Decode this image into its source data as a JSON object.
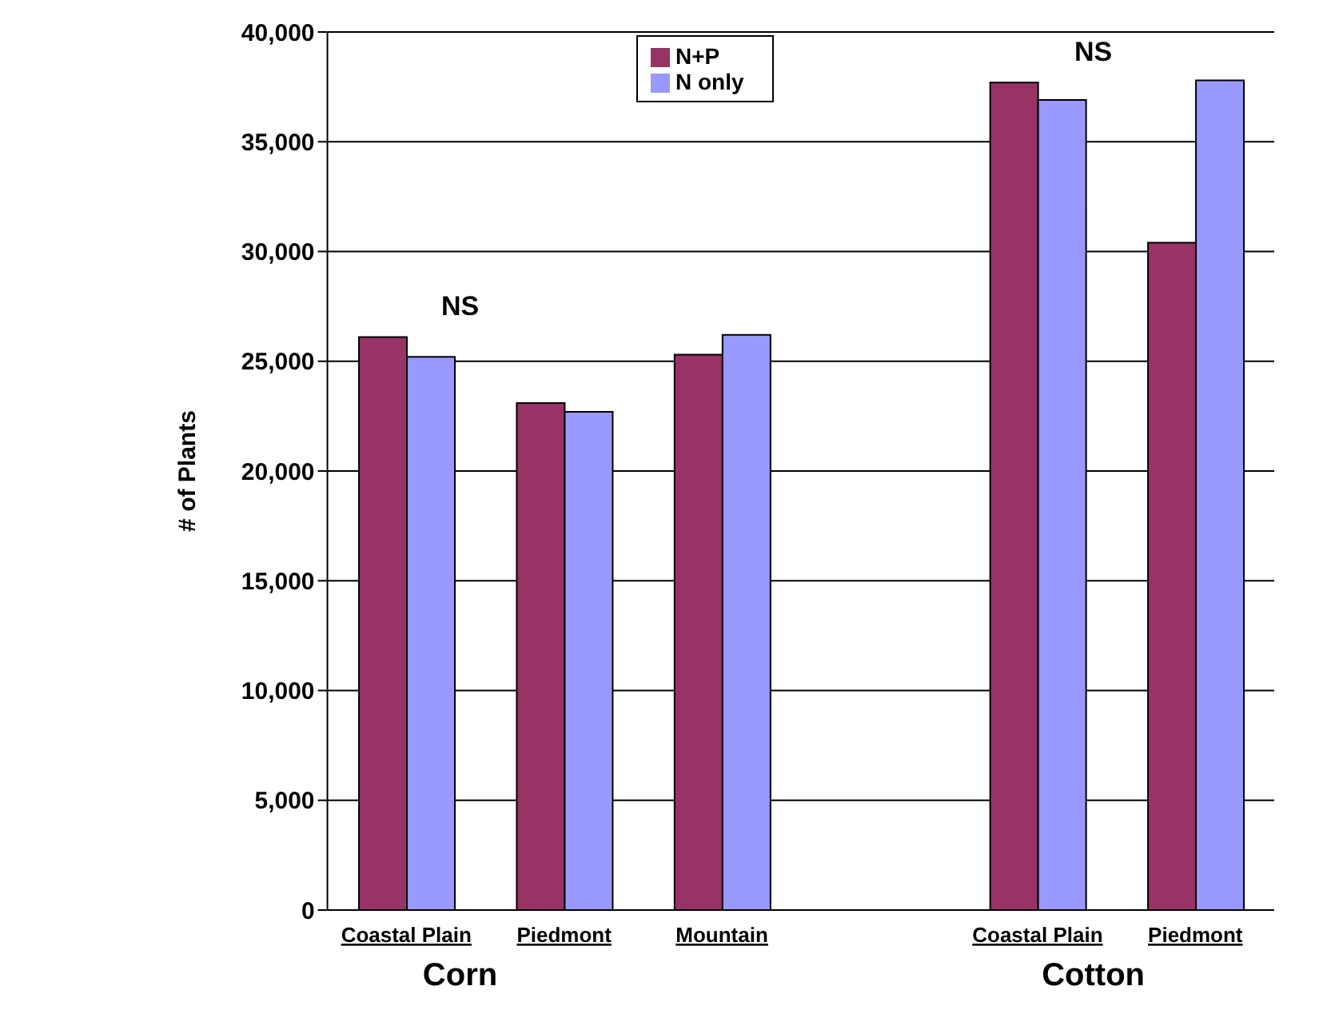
{
  "chart_data": {
    "type": "bar",
    "ylabel": "# of Plants",
    "categories": [
      "Coastal Plain",
      "Piedmont",
      "Mountain",
      null,
      "Coastal Plain",
      "Piedmont"
    ],
    "series": [
      {
        "name": "N+P",
        "color": "#993366",
        "values": [
          26100,
          23100,
          25300,
          null,
          37700,
          30400
        ]
      },
      {
        "name": "N only",
        "color": "#9999ff",
        "values": [
          25200,
          22700,
          26200,
          null,
          36900,
          37800
        ]
      }
    ],
    "ylim": [
      0,
      40000
    ],
    "yticks": [
      0,
      {
        "value": 5000,
        "label": "5,000"
      },
      {
        "value": 10000,
        "label": "10,000"
      },
      {
        "value": 15000,
        "label": "15,000"
      },
      {
        "value": 20000,
        "label": "20,000"
      },
      {
        "value": 25000,
        "label": "25,000"
      },
      {
        "value": 30000,
        "label": "30,000"
      },
      {
        "value": 35000,
        "label": "35,000"
      },
      {
        "value": 40000,
        "label": "40,000"
      }
    ],
    "grid": "y",
    "legend": "top",
    "annotations": [
      "NS",
      "NS",
      "Corn",
      "Cotton"
    ]
  }
}
